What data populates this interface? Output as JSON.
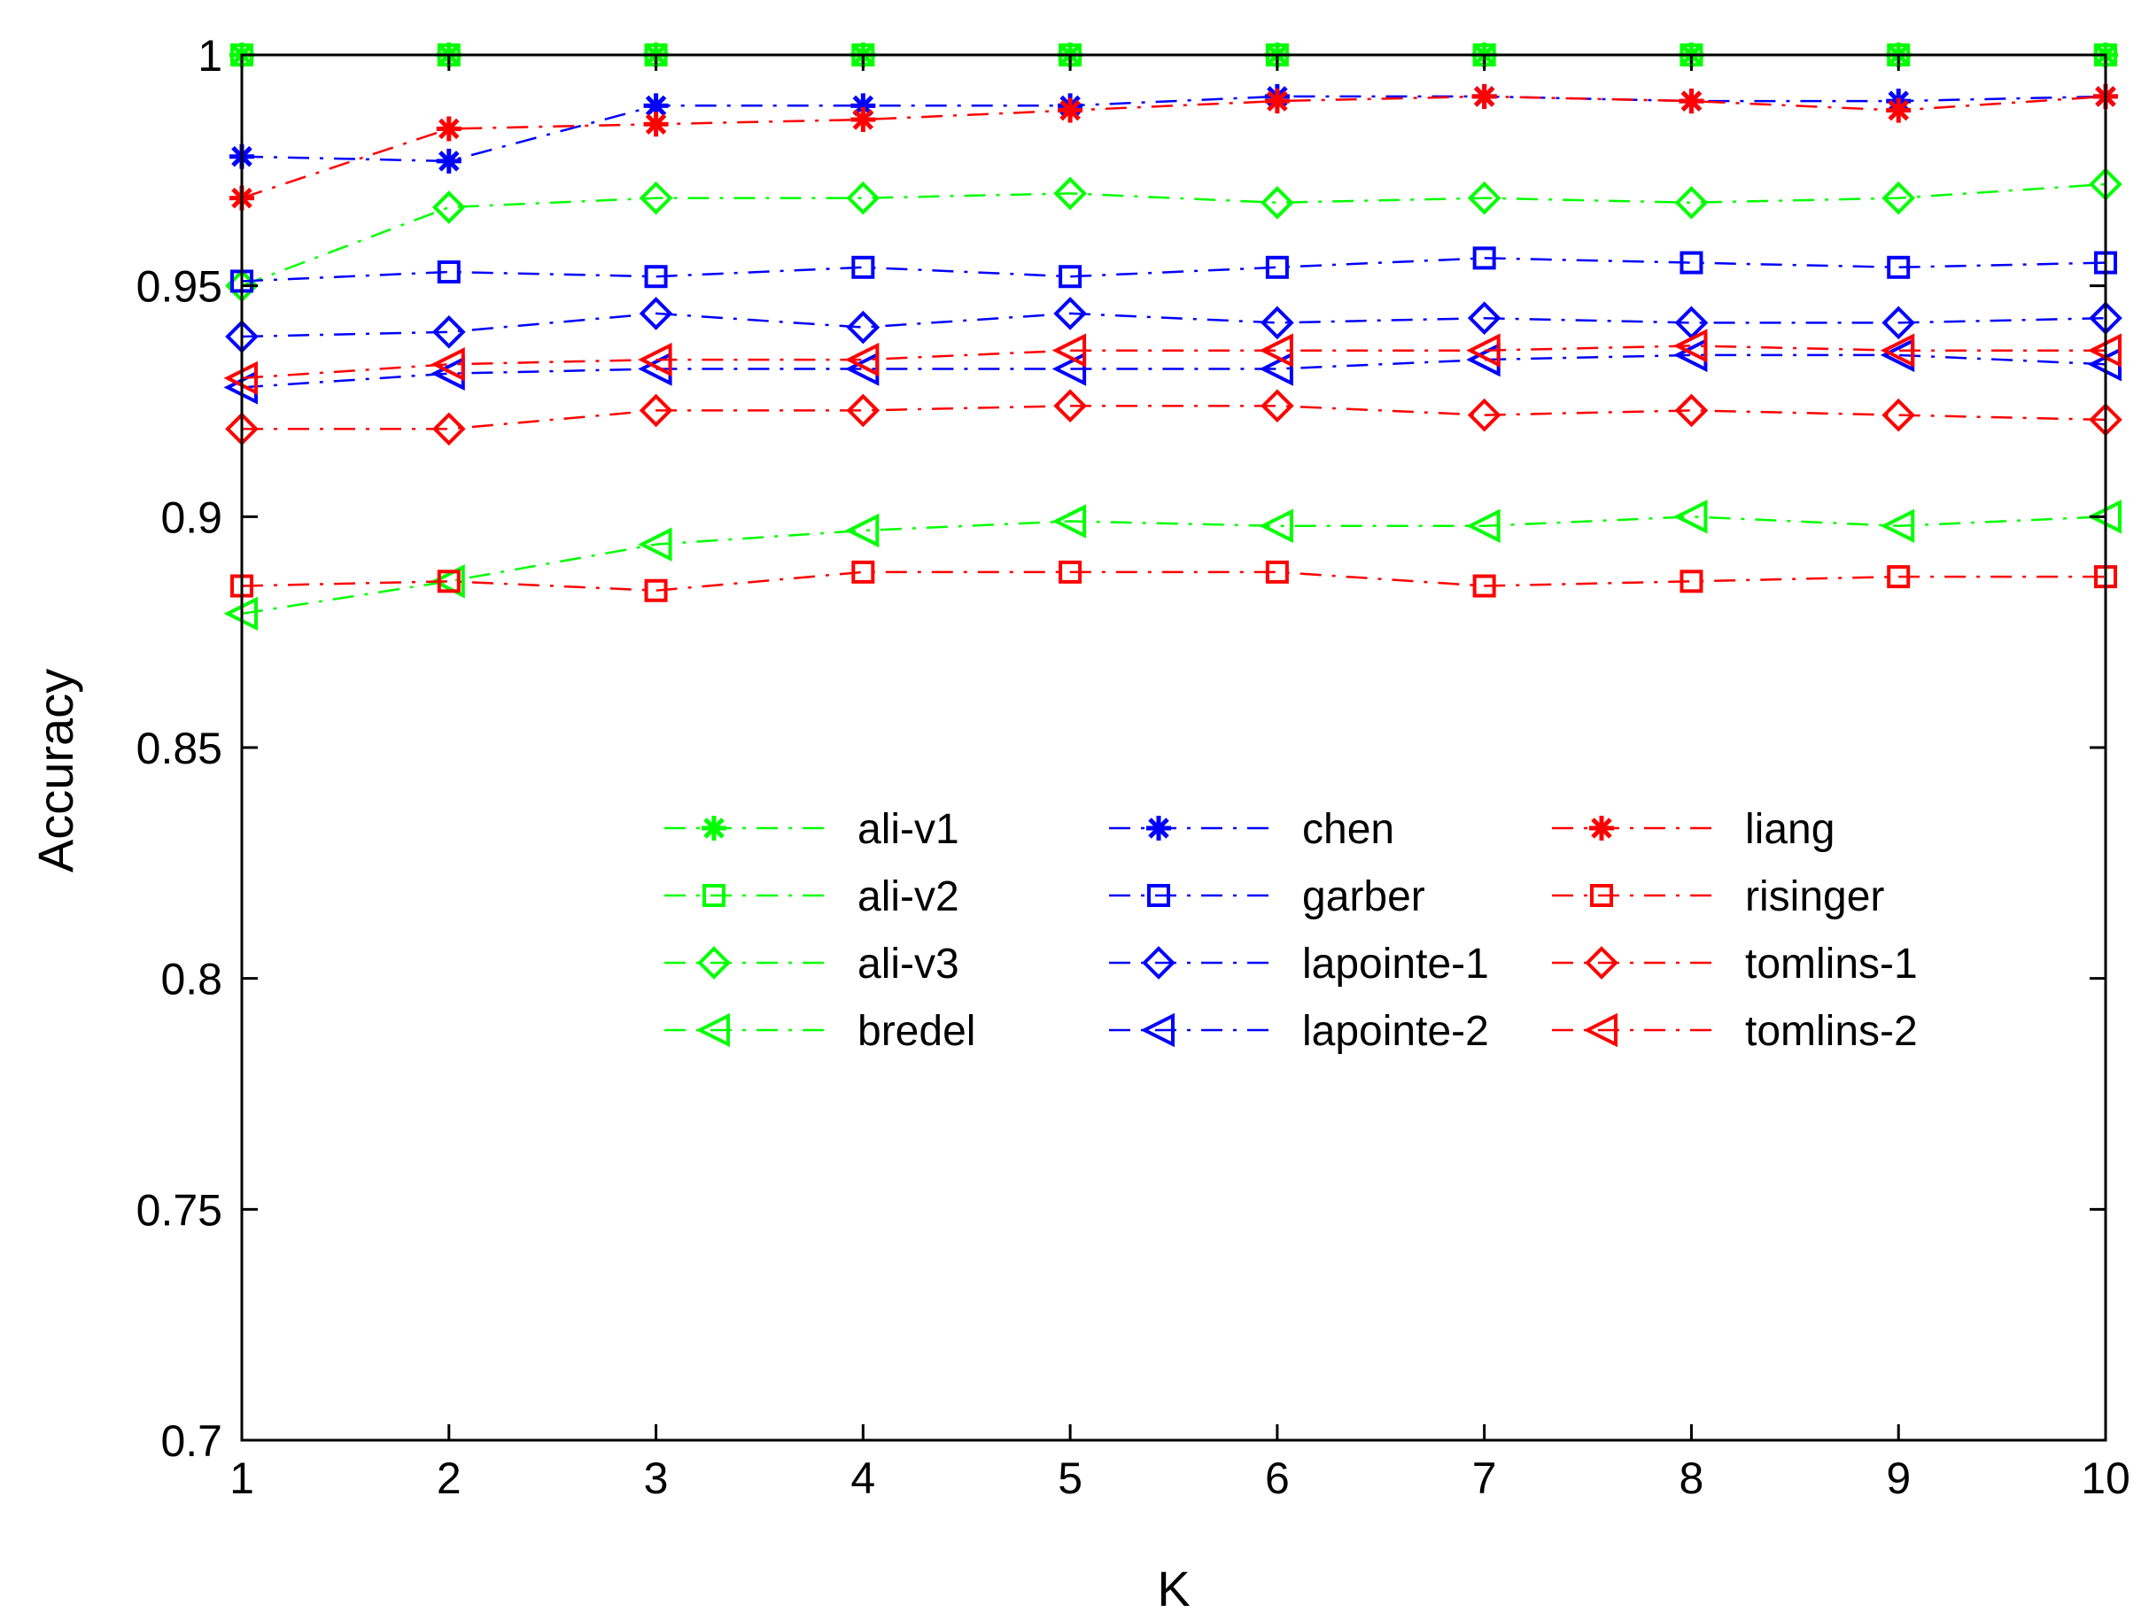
{
  "chart_data": {
    "type": "line",
    "title": "",
    "xlabel": "K",
    "ylabel": "Accuracy",
    "xlim": [
      1,
      10
    ],
    "ylim": [
      0.7,
      1.0
    ],
    "grid": false,
    "legend_position": "center",
    "x": [
      1,
      2,
      3,
      4,
      5,
      6,
      7,
      8,
      9,
      10
    ],
    "x_ticks": [
      "1",
      "2",
      "3",
      "4",
      "5",
      "6",
      "7",
      "8",
      "9",
      "10"
    ],
    "y_ticks": [
      0.7,
      0.75,
      0.8,
      0.85,
      0.9,
      0.95,
      1.0
    ],
    "y_tick_labels": [
      "0.7",
      "0.75",
      "0.8",
      "0.85",
      "0.9",
      "0.95",
      "1"
    ],
    "series": [
      {
        "name": "ali-v1",
        "color": "#00ff00",
        "marker": "asterisk",
        "values": [
          1,
          1,
          1,
          1,
          1,
          1,
          1,
          1,
          1,
          1
        ]
      },
      {
        "name": "ali-v2",
        "color": "#00ff00",
        "marker": "square",
        "values": [
          1,
          1,
          1,
          1,
          1,
          1,
          1,
          1,
          1,
          1
        ]
      },
      {
        "name": "ali-v3",
        "color": "#00ff00",
        "marker": "diamond",
        "values": [
          0.95,
          0.967,
          0.969,
          0.969,
          0.97,
          0.968,
          0.969,
          0.968,
          0.969,
          0.972
        ]
      },
      {
        "name": "bredel",
        "color": "#00ff00",
        "marker": "triangle-left",
        "values": [
          0.879,
          0.886,
          0.894,
          0.897,
          0.899,
          0.898,
          0.898,
          0.9,
          0.898,
          0.9
        ]
      },
      {
        "name": "chen",
        "color": "#0000ff",
        "marker": "asterisk",
        "values": [
          0.978,
          0.977,
          0.989,
          0.989,
          0.989,
          0.991,
          0.991,
          0.99,
          0.99,
          0.991
        ]
      },
      {
        "name": "garber",
        "color": "#0000ff",
        "marker": "square",
        "values": [
          0.951,
          0.953,
          0.952,
          0.954,
          0.952,
          0.954,
          0.956,
          0.955,
          0.954,
          0.955
        ]
      },
      {
        "name": "lapointe-1",
        "color": "#0000ff",
        "marker": "diamond",
        "values": [
          0.939,
          0.94,
          0.944,
          0.941,
          0.944,
          0.942,
          0.943,
          0.942,
          0.942,
          0.943
        ]
      },
      {
        "name": "lapointe-2",
        "color": "#0000ff",
        "marker": "triangle-left",
        "values": [
          0.928,
          0.931,
          0.932,
          0.932,
          0.932,
          0.932,
          0.934,
          0.935,
          0.935,
          0.933
        ]
      },
      {
        "name": "liang",
        "color": "#ff0000",
        "marker": "asterisk",
        "values": [
          0.969,
          0.984,
          0.985,
          0.986,
          0.988,
          0.99,
          0.991,
          0.99,
          0.988,
          0.991
        ]
      },
      {
        "name": "risinger",
        "color": "#ff0000",
        "marker": "square",
        "values": [
          0.885,
          0.886,
          0.884,
          0.888,
          0.888,
          0.888,
          0.885,
          0.886,
          0.887,
          0.887
        ]
      },
      {
        "name": "tomlins-1",
        "color": "#ff0000",
        "marker": "diamond",
        "values": [
          0.919,
          0.919,
          0.923,
          0.923,
          0.924,
          0.924,
          0.922,
          0.923,
          0.922,
          0.921
        ]
      },
      {
        "name": "tomlins-2",
        "color": "#ff0000",
        "marker": "triangle-left",
        "values": [
          0.93,
          0.933,
          0.934,
          0.934,
          0.936,
          0.936,
          0.936,
          0.937,
          0.936,
          0.936
        ]
      }
    ]
  }
}
